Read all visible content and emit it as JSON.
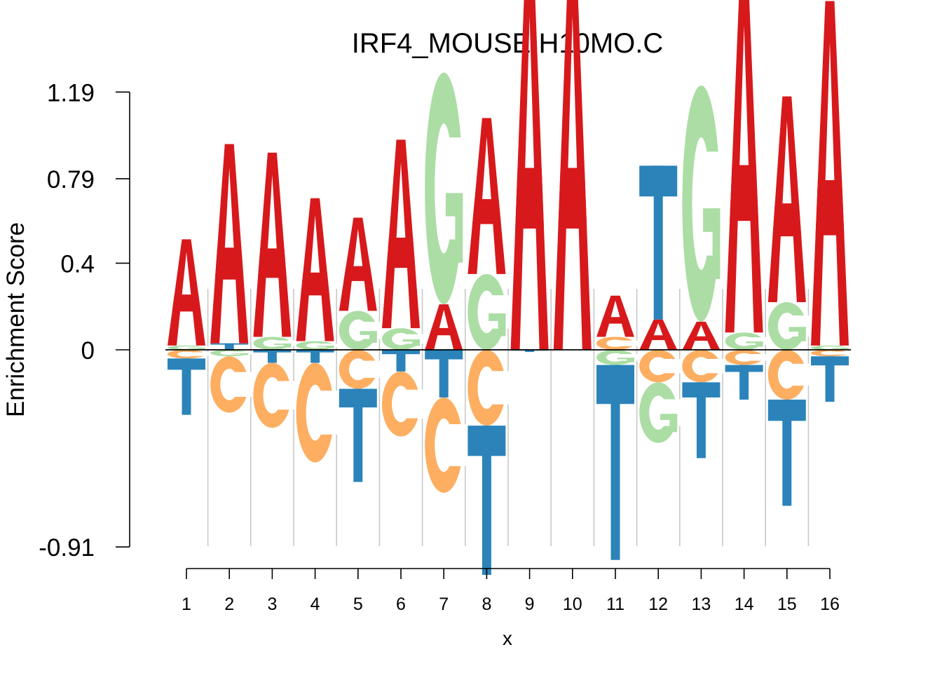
{
  "chart_data": {
    "type": "sequence-logo",
    "title": "IRF4_MOUSE.H10MO.C",
    "xlabel": "x",
    "ylabel": "Enrichment Score",
    "x_ticks": [
      "1",
      "2",
      "3",
      "4",
      "5",
      "6",
      "7",
      "8",
      "9",
      "10",
      "11",
      "12",
      "13",
      "14",
      "15",
      "16"
    ],
    "y_ticks": [
      "1.19",
      "0.79",
      "0.4",
      "0",
      "-0.91"
    ],
    "ylim": [
      -0.91,
      1.19
    ],
    "colors": {
      "A": "#d7191c",
      "C": "#fdae61",
      "G": "#abdda4",
      "T": "#2b83ba"
    },
    "positions": [
      {
        "pos": "1",
        "letters": [
          {
            "b": "A",
            "v": 0.49
          },
          {
            "b": "G",
            "v": 0.02
          },
          {
            "b": "C",
            "v": -0.04
          },
          {
            "b": "T",
            "v": -0.26
          }
        ]
      },
      {
        "pos": "2",
        "letters": [
          {
            "b": "A",
            "v": 0.92
          },
          {
            "b": "T",
            "v": 0.03
          },
          {
            "b": "G",
            "v": -0.03
          },
          {
            "b": "C",
            "v": -0.26
          }
        ]
      },
      {
        "pos": "3",
        "letters": [
          {
            "b": "A",
            "v": 0.85
          },
          {
            "b": "G",
            "v": 0.06
          },
          {
            "b": "T",
            "v": -0.06
          },
          {
            "b": "C",
            "v": -0.3
          }
        ]
      },
      {
        "pos": "4",
        "letters": [
          {
            "b": "A",
            "v": 0.66
          },
          {
            "b": "G",
            "v": 0.04
          },
          {
            "b": "T",
            "v": -0.06
          },
          {
            "b": "C",
            "v": -0.46
          }
        ]
      },
      {
        "pos": "5",
        "letters": [
          {
            "b": "A",
            "v": 0.43
          },
          {
            "b": "G",
            "v": 0.18
          },
          {
            "b": "C",
            "v": -0.18
          },
          {
            "b": "T",
            "v": -0.43
          }
        ]
      },
      {
        "pos": "6",
        "letters": [
          {
            "b": "A",
            "v": 0.87
          },
          {
            "b": "G",
            "v": 0.1
          },
          {
            "b": "T",
            "v": -0.1
          },
          {
            "b": "C",
            "v": -0.3
          }
        ]
      },
      {
        "pos": "7",
        "letters": [
          {
            "b": "G",
            "v": 1.07
          },
          {
            "b": "A",
            "v": 0.21
          },
          {
            "b": "T",
            "v": -0.22
          },
          {
            "b": "C",
            "v": -0.44
          }
        ]
      },
      {
        "pos": "8",
        "letters": [
          {
            "b": "A",
            "v": 0.72
          },
          {
            "b": "G",
            "v": 0.35
          },
          {
            "b": "C",
            "v": -0.35
          },
          {
            "b": "T",
            "v": -0.7
          }
        ]
      },
      {
        "pos": "9",
        "letters": [
          {
            "b": "A",
            "v": 1.75
          },
          {
            "b": "T",
            "v": -0.01
          }
        ]
      },
      {
        "pos": "10",
        "letters": [
          {
            "b": "A",
            "v": 1.75
          }
        ]
      },
      {
        "pos": "11",
        "letters": [
          {
            "b": "A",
            "v": 0.19
          },
          {
            "b": "C",
            "v": 0.06
          },
          {
            "b": "G",
            "v": -0.07
          },
          {
            "b": "T",
            "v": -0.9
          }
        ]
      },
      {
        "pos": "12",
        "letters": [
          {
            "b": "T",
            "v": 0.71
          },
          {
            "b": "A",
            "v": 0.14
          },
          {
            "b": "C",
            "v": -0.15
          },
          {
            "b": "G",
            "v": -0.28
          }
        ]
      },
      {
        "pos": "13",
        "letters": [
          {
            "b": "G",
            "v": 1.09
          },
          {
            "b": "A",
            "v": 0.13
          },
          {
            "b": "C",
            "v": -0.15
          },
          {
            "b": "T",
            "v": -0.35
          }
        ]
      },
      {
        "pos": "14",
        "letters": [
          {
            "b": "A",
            "v": 1.61
          },
          {
            "b": "G",
            "v": 0.08
          },
          {
            "b": "C",
            "v": -0.07
          },
          {
            "b": "T",
            "v": -0.16
          }
        ]
      },
      {
        "pos": "15",
        "letters": [
          {
            "b": "A",
            "v": 0.95
          },
          {
            "b": "G",
            "v": 0.22
          },
          {
            "b": "C",
            "v": -0.23
          },
          {
            "b": "T",
            "v": -0.49
          }
        ]
      },
      {
        "pos": "16",
        "letters": [
          {
            "b": "A",
            "v": 1.59
          },
          {
            "b": "G",
            "v": 0.02
          },
          {
            "b": "C",
            "v": -0.03
          },
          {
            "b": "T",
            "v": -0.21
          }
        ]
      }
    ]
  }
}
